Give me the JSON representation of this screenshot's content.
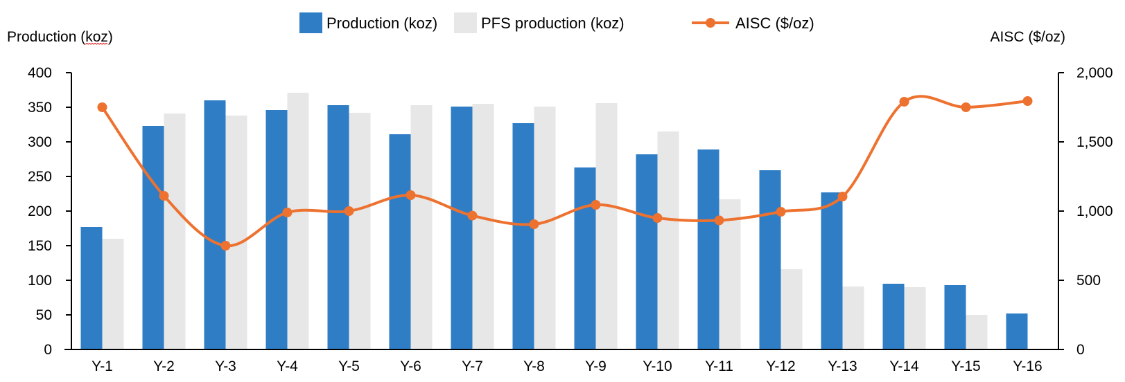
{
  "chart_data": {
    "type": "bar",
    "title": "",
    "xlabel": "",
    "ylabel": "Production (koz)",
    "y2label": "AISC ($/oz)",
    "categories": [
      "Y-1",
      "Y-2",
      "Y-3",
      "Y-4",
      "Y-5",
      "Y-6",
      "Y-7",
      "Y-8",
      "Y-9",
      "Y-10",
      "Y-11",
      "Y-12",
      "Y-13",
      "Y-14",
      "Y-15",
      "Y-16"
    ],
    "ylim": [
      0,
      400
    ],
    "y2lim": [
      0,
      2000
    ],
    "yticks": [
      0,
      50,
      100,
      150,
      200,
      250,
      300,
      350,
      400
    ],
    "ytick_labels": [
      "0",
      "50",
      "100",
      "150",
      "200",
      "250",
      "300",
      "350",
      "400"
    ],
    "y2ticks": [
      0,
      500,
      1000,
      1500,
      2000
    ],
    "y2tick_labels": [
      "0",
      "500",
      "1,000",
      "1,500",
      "2,000"
    ],
    "grid": false,
    "legend_position": "top-center",
    "series": [
      {
        "name": "Production (koz)",
        "type": "bar",
        "axis": "left",
        "color": "#2E7DC5",
        "values": [
          177,
          323,
          360,
          346,
          353,
          311,
          351,
          327,
          263,
          282,
          289,
          259,
          227,
          95,
          93,
          52
        ]
      },
      {
        "name": "PFS production (koz)",
        "type": "bar",
        "axis": "left",
        "color": "#E7E7E7",
        "values": [
          160,
          341,
          338,
          371,
          342,
          353,
          355,
          351,
          356,
          315,
          217,
          116,
          91,
          90,
          50,
          0
        ]
      },
      {
        "name": "AISC ($/oz)",
        "type": "line",
        "axis": "right",
        "smooth": true,
        "marker": "circle",
        "color": "#ED7230",
        "values": [
          1750,
          1110,
          750,
          990,
          1000,
          1115,
          967,
          905,
          1045,
          950,
          933,
          995,
          1105,
          1790,
          1750,
          1795
        ]
      }
    ]
  }
}
